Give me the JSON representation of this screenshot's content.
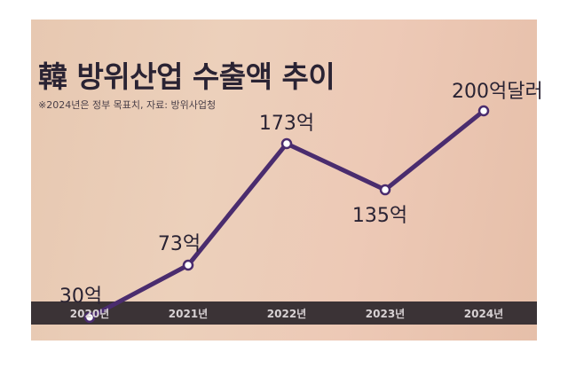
{
  "chart_data": {
    "type": "line",
    "title": "韓 방위산업 수출액 추이",
    "note": "※2024년은 정부 목표치, 자료: 방위사업청",
    "categories": [
      "2020년",
      "2021년",
      "2022년",
      "2023년",
      "2024년"
    ],
    "values": [
      30,
      73,
      173,
      135,
      200
    ],
    "data_labels": [
      "30억",
      "73억",
      "173억",
      "135억",
      "200억달러"
    ],
    "unit": "억달러",
    "ylim": [
      0,
      230
    ],
    "grid": false,
    "colors": {
      "line": "#4a2c6e",
      "marker_fill": "#ffffff",
      "axis_band": "#3b3336",
      "tick_text": "#d8d2d4"
    }
  }
}
